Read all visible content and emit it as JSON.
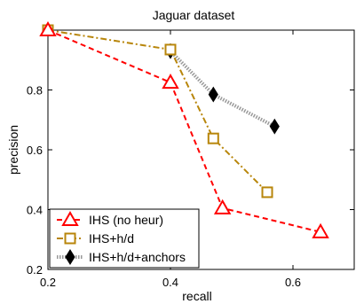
{
  "chart_data": {
    "type": "line",
    "title": "Jaguar dataset",
    "xlabel": "recall",
    "ylabel": "precision",
    "xlim": [
      0.2,
      0.7
    ],
    "ylim": [
      0.2,
      1.0
    ],
    "xticks": [
      0.2,
      0.4,
      0.6
    ],
    "yticks": [
      0.2,
      0.4,
      0.6,
      0.8
    ],
    "xtick_labels": [
      "0.2",
      "0.4",
      "0.6"
    ],
    "ytick_labels": [
      "0.2",
      "0.4",
      "0.6",
      "0.8"
    ],
    "grid": false,
    "legend_position": "bottom-left",
    "series": [
      {
        "name": "IHS (no heur)",
        "color": "#ff0000",
        "marker": "triangle-open",
        "line_style": "dashed",
        "x": [
          0.2,
          0.4,
          0.485,
          0.645
        ],
        "y": [
          1.0,
          0.825,
          0.405,
          0.325
        ]
      },
      {
        "name": "IHS+h/d",
        "color": "#b8860b",
        "marker": "square-open",
        "line_style": "dash-dot",
        "x": [
          0.2,
          0.4,
          0.47,
          0.558
        ],
        "y": [
          1.0,
          0.935,
          0.638,
          0.458
        ]
      },
      {
        "name": "IHS+h/d+anchors",
        "color": "#000000",
        "line_color": "#999999",
        "marker": "diamond-filled",
        "line_style": "dotted",
        "x": [
          0.4,
          0.47,
          0.57
        ],
        "y": [
          0.93,
          0.785,
          0.678
        ]
      }
    ]
  }
}
